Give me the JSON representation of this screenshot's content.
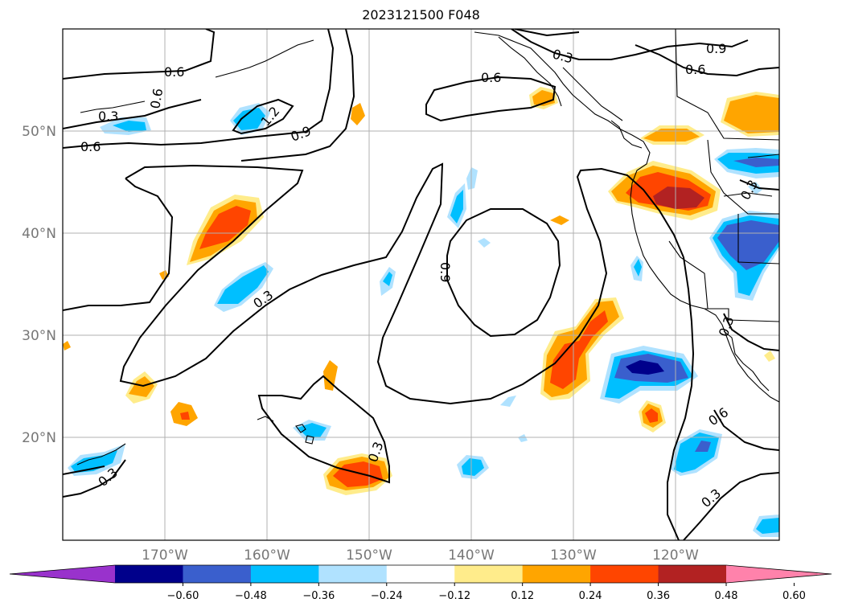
{
  "title": "2023121500 F048",
  "map": {
    "lon_labels": [
      "170°W",
      "160°W",
      "150°W",
      "140°W",
      "130°W",
      "120°W"
    ],
    "lat_labels": [
      "50°N",
      "40°N",
      "30°N",
      "20°N"
    ],
    "contour_labels": [
      "0.6",
      "0.6",
      "0.6",
      "1.2",
      "0.9",
      "0.3",
      "0.6",
      "0.9",
      "0.6",
      "0.3",
      "0.9",
      "0.3",
      "0.3",
      "0.3",
      "0.3",
      "0.6",
      "0.3",
      "0.3"
    ]
  },
  "colorbar": {
    "ticks": [
      "−0.60",
      "−0.48",
      "−0.36",
      "−0.24",
      "−0.12",
      "0.12",
      "0.24",
      "0.36",
      "0.48",
      "0.60"
    ],
    "colors": [
      "#9932cc",
      "#00008b",
      "#3a5fcd",
      "#00bfff",
      "#b0e2ff",
      "#ffffff",
      "#ffec8b",
      "#ffa500",
      "#ff4500",
      "#b22222",
      "#ff82ab"
    ]
  }
}
